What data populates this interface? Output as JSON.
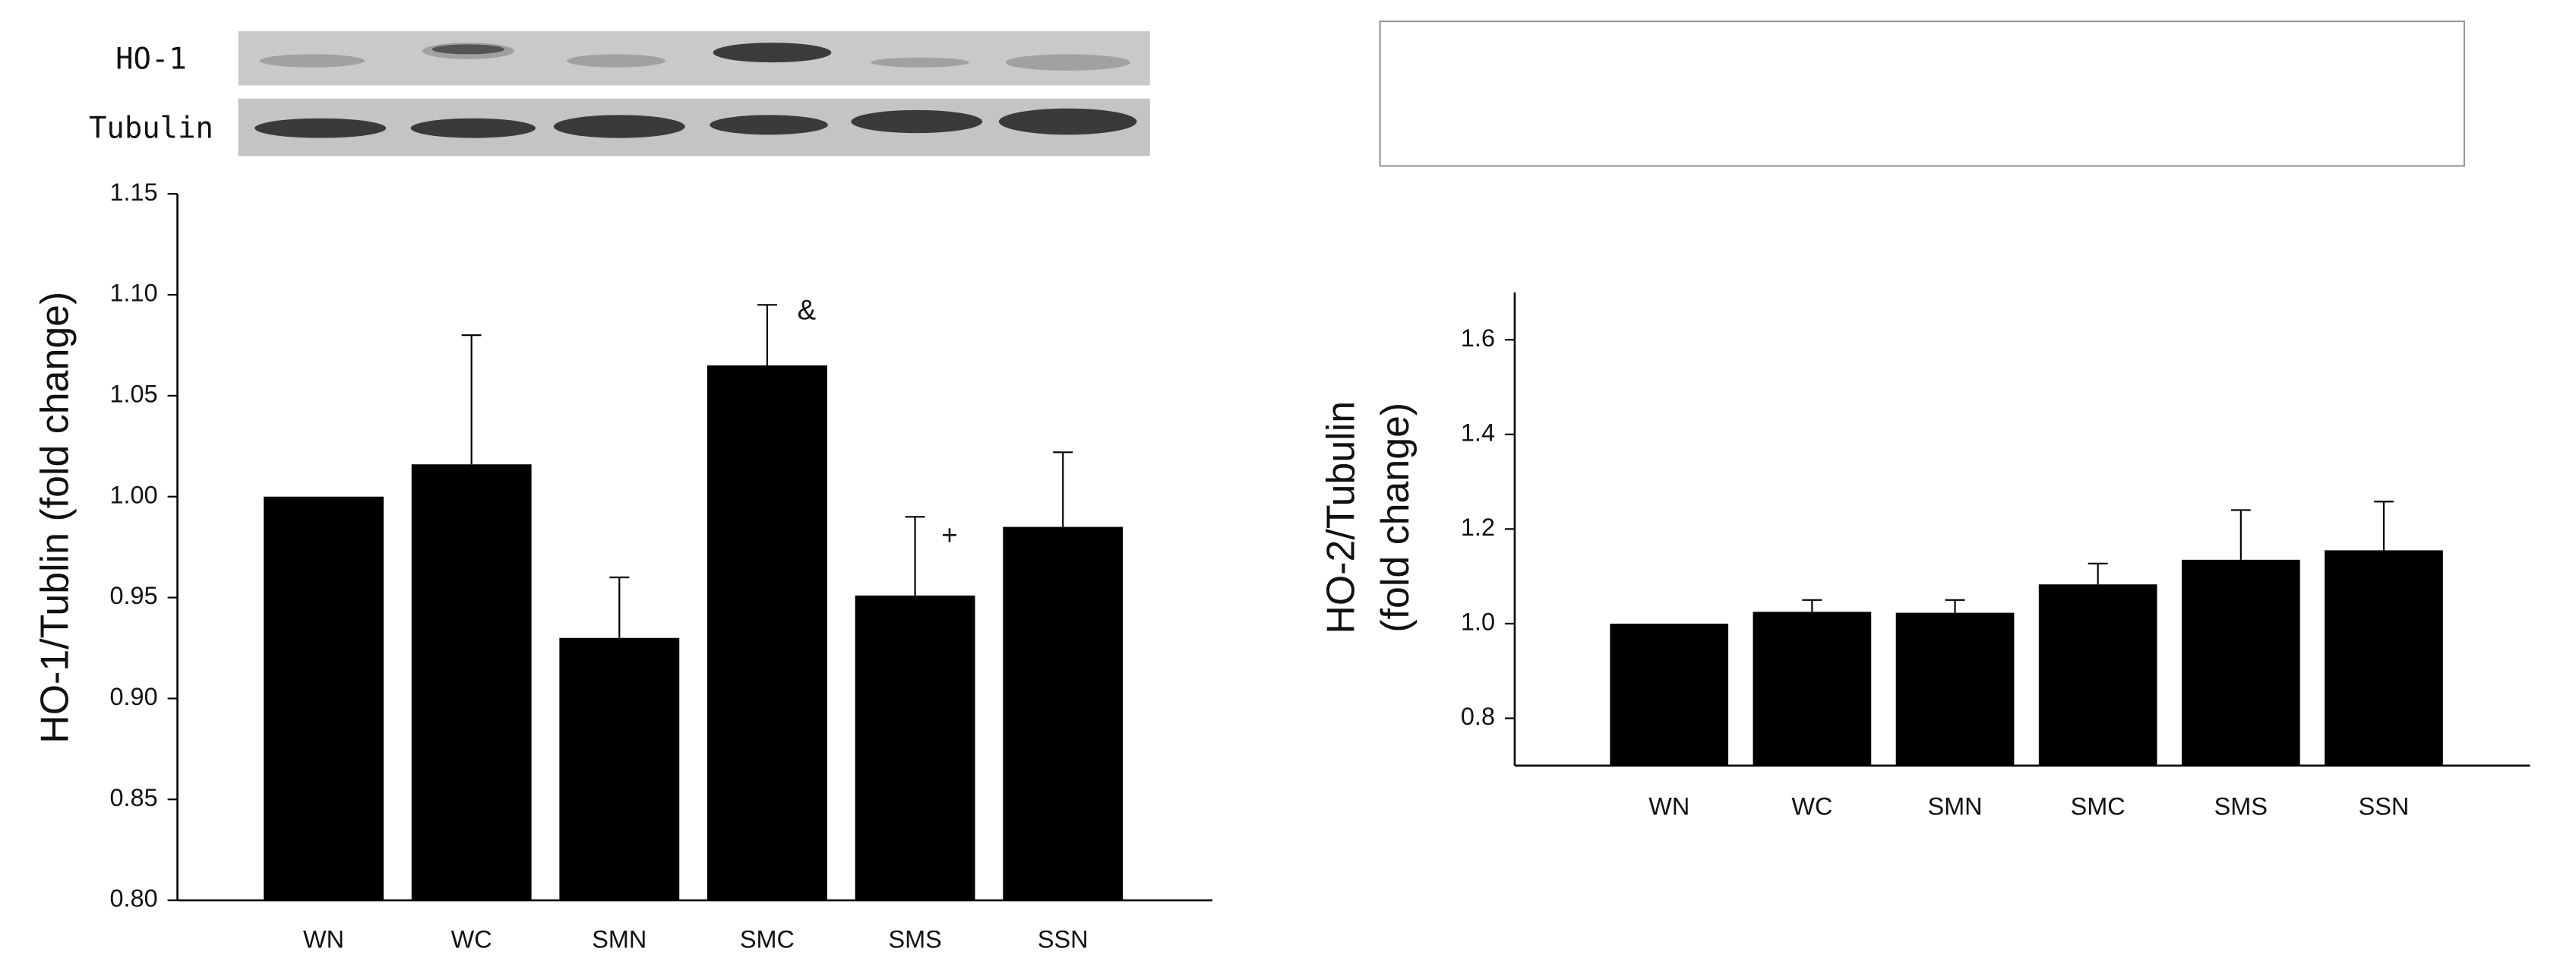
{
  "chart_data": [
    {
      "type": "bar",
      "blot_labels": [
        "HO-1",
        "Tubulin"
      ],
      "ylabel": "HO-1/Tublin (fold change)",
      "categories": [
        "WN",
        "WC",
        "SMN",
        "SMC",
        "SMS",
        "SSN"
      ],
      "values": [
        1.0,
        1.016,
        0.93,
        1.065,
        0.951,
        0.985
      ],
      "errors": [
        0,
        0.064,
        0.03,
        0.03,
        0.039,
        0.037
      ],
      "annotations": [
        "&",
        "+"
      ],
      "color": "#000000",
      "ylim": [
        0.8,
        1.15
      ],
      "yticks": [
        {
          "value": 0.8,
          "label": "0.80"
        },
        {
          "value": 0.85,
          "label": "0.85"
        },
        {
          "value": 0.9,
          "label": "0.90"
        },
        {
          "value": 0.95,
          "label": "0.95"
        },
        {
          "value": 1.0,
          "label": "1.00"
        },
        {
          "value": 1.05,
          "label": "1.05"
        },
        {
          "value": 1.1,
          "label": "1.10"
        },
        {
          "value": 1.15,
          "label": "1.15"
        }
      ]
    },
    {
      "type": "bar",
      "ylabel": [
        "HO-2/Tubulin",
        "(fold change)"
      ],
      "categories": [
        "WN",
        "WC",
        "SMN",
        "SMC",
        "SMS",
        "SSN"
      ],
      "values": [
        1.0,
        1.025,
        1.023,
        1.083,
        1.135,
        1.155
      ],
      "errors": [
        0,
        0.025,
        0.027,
        0.044,
        0.105,
        0.103
      ],
      "color": "#000000",
      "ylim": [
        0.7,
        1.7
      ],
      "yticks": [
        {
          "value": 0.8,
          "label": "0.8"
        },
        {
          "value": 1.0,
          "label": "1.0"
        },
        {
          "value": 1.2,
          "label": "1.2"
        },
        {
          "value": 1.4,
          "label": "1.4"
        },
        {
          "value": 1.6,
          "label": "1.6"
        }
      ]
    }
  ]
}
